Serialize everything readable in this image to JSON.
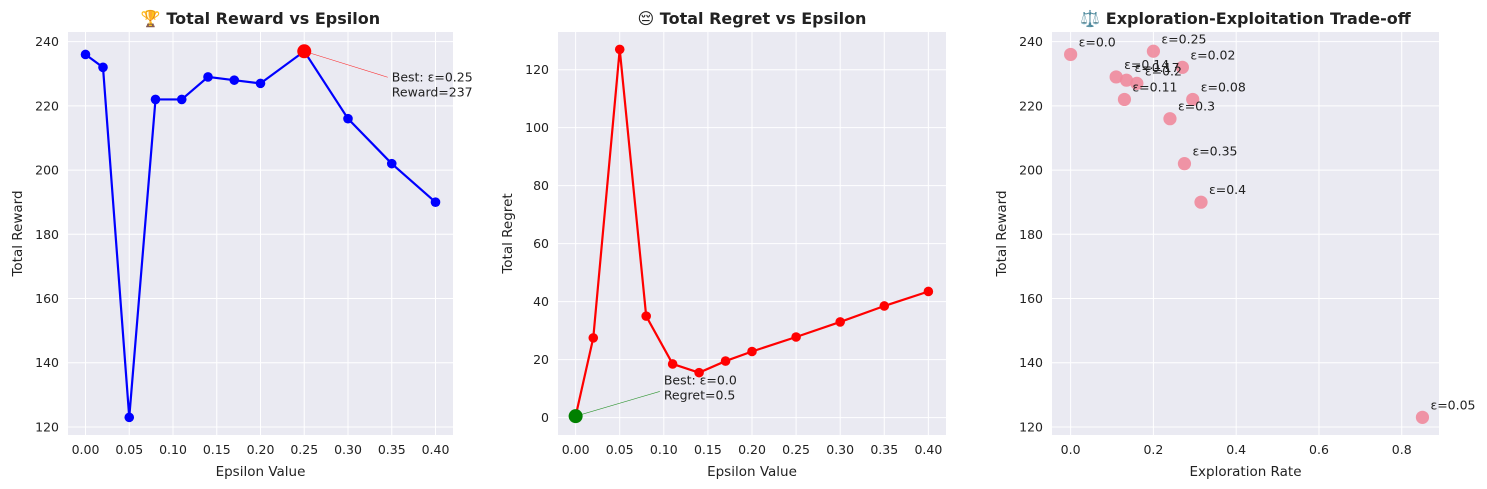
{
  "chart_data": [
    {
      "type": "line",
      "title": "🏆 Total Reward vs Epsilon",
      "xlabel": "Epsilon Value",
      "ylabel": "Total Reward",
      "xlim": [
        -0.02,
        0.42
      ],
      "ylim": [
        117.5,
        243
      ],
      "xticks": [
        "0.00",
        "0.05",
        "0.10",
        "0.15",
        "0.20",
        "0.25",
        "0.30",
        "0.35",
        "0.40"
      ],
      "yticks": [
        "120",
        "140",
        "160",
        "180",
        "200",
        "220",
        "240"
      ],
      "grid": true,
      "series": [
        {
          "x": [
            0.0,
            0.02,
            0.05,
            0.08,
            0.11,
            0.14,
            0.17,
            0.2,
            0.25,
            0.3,
            0.35,
            0.4
          ],
          "values": [
            236,
            232,
            123,
            222,
            222,
            229,
            228,
            227,
            237,
            216,
            202,
            190
          ],
          "color": "#0000ff"
        }
      ],
      "best": {
        "x": 0.25,
        "y": 237,
        "color": "#ff0000"
      },
      "annotation": {
        "lines": [
          "Best: ε=0.25",
          "Reward=237"
        ],
        "x": 0.35,
        "y": 237
      }
    },
    {
      "type": "line",
      "title": "😔 Total Regret vs Epsilon",
      "xlabel": "Epsilon Value",
      "ylabel": "Total Regret",
      "xlim": [
        -0.02,
        0.42
      ],
      "ylim": [
        -6,
        133
      ],
      "xticks": [
        "0.00",
        "0.05",
        "0.10",
        "0.15",
        "0.20",
        "0.25",
        "0.30",
        "0.35",
        "0.40"
      ],
      "yticks": [
        "0",
        "20",
        "40",
        "60",
        "80",
        "100",
        "120"
      ],
      "grid": true,
      "series": [
        {
          "x": [
            0.0,
            0.02,
            0.05,
            0.08,
            0.11,
            0.14,
            0.17,
            0.2,
            0.25,
            0.3,
            0.35,
            0.4
          ],
          "values": [
            0.5,
            27.5,
            127,
            35,
            18.5,
            15.5,
            19.5,
            22.8,
            27.8,
            33,
            38.5,
            43.5
          ],
          "color": "#ff0000"
        }
      ],
      "best": {
        "x": 0.0,
        "y": 0.5,
        "color": "#008000"
      },
      "annotation": {
        "lines": [
          "Best: ε=0.0",
          "Regret=0.5"
        ],
        "x": 0.1,
        "y": 8
      }
    },
    {
      "type": "scatter",
      "title": "⚖️ Exploration-Exploitation Trade-off",
      "xlabel": "Exploration Rate",
      "ylabel": "Total Reward",
      "xlim": [
        -0.045,
        0.89
      ],
      "ylim": [
        117.5,
        243
      ],
      "xticks": [
        "0.0",
        "0.2",
        "0.4",
        "0.6",
        "0.8"
      ],
      "yticks": [
        "120",
        "140",
        "160",
        "180",
        "200",
        "220",
        "240"
      ],
      "grid": true,
      "color": "#f08a9c",
      "points": [
        {
          "x": 0.0,
          "y": 236,
          "label": "ε=0.0"
        },
        {
          "x": 0.27,
          "y": 232,
          "label": "ε=0.02"
        },
        {
          "x": 0.85,
          "y": 123,
          "label": "ε=0.05"
        },
        {
          "x": 0.295,
          "y": 222,
          "label": "ε=0.08"
        },
        {
          "x": 0.13,
          "y": 222,
          "label": "ε=0.11"
        },
        {
          "x": 0.11,
          "y": 229,
          "label": "ε=0.14"
        },
        {
          "x": 0.135,
          "y": 228,
          "label": "ε=0.17"
        },
        {
          "x": 0.16,
          "y": 227,
          "label": "ε=0.2"
        },
        {
          "x": 0.2,
          "y": 237,
          "label": "ε=0.25"
        },
        {
          "x": 0.24,
          "y": 216,
          "label": "ε=0.3"
        },
        {
          "x": 0.275,
          "y": 202,
          "label": "ε=0.35"
        },
        {
          "x": 0.315,
          "y": 190,
          "label": "ε=0.4"
        }
      ]
    }
  ]
}
